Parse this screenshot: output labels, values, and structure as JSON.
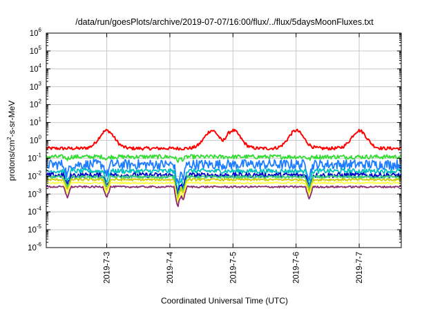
{
  "chart_data": {
    "type": "line",
    "title": "/data/run/goesPlots/archive/2019-07-07/16:00/flux/../flux/5daysMoonFluxes.txt",
    "xlabel": "Coordinated Universal Time (UTC)",
    "ylabel": "protons/cm2-s-sr-MeV",
    "ylabel_parts": {
      "pre": "protons/cm",
      "sup": "2",
      "post": "-s-sr-MeV"
    },
    "yscale": "log",
    "ylim_exp": [
      -6,
      6
    ],
    "y_tick_labels": [
      {
        "base": "10",
        "exp": "6"
      },
      {
        "base": "10",
        "exp": "5"
      },
      {
        "base": "10",
        "exp": "4"
      },
      {
        "base": "10",
        "exp": "3"
      },
      {
        "base": "10",
        "exp": "2"
      },
      {
        "base": "10",
        "exp": "1"
      },
      {
        "base": "10",
        "exp": "0"
      },
      {
        "base": "10",
        "exp": "-1"
      },
      {
        "base": "10",
        "exp": "-2"
      },
      {
        "base": "10",
        "exp": "-3"
      },
      {
        "base": "10",
        "exp": "-4"
      },
      {
        "base": "10",
        "exp": "-5"
      },
      {
        "base": "10",
        "exp": "-6"
      }
    ],
    "x_range_days": [
      "2019-7-2 01:00",
      "2019-7-7 16:00"
    ],
    "x_tick_labels": [
      "2019-7-3",
      "2019-7-4",
      "2019-7-5",
      "2019-7-6",
      "2019-7-7"
    ],
    "grid": true,
    "legend": "none",
    "series": [
      {
        "color": "#ff0000",
        "kind": "modulated",
        "base": 0.0,
        "amp": 0.45,
        "noise": 0.09,
        "peaks": [
          "2019-7-3",
          "2019-7-4 16:00",
          "2019-7-5",
          "2019-7-6",
          "2019-7-7 00:00"
        ]
      },
      {
        "color": "#33dd33",
        "kind": "flat",
        "level": -0.92,
        "noise": 0.12
      },
      {
        "color": "#1f7dff",
        "kind": "flat",
        "level": -1.35,
        "noise": 0.28
      },
      {
        "color": "#00bfbf",
        "kind": "flat",
        "level": -1.72,
        "noise": 0.13
      },
      {
        "color": "#0000cc",
        "kind": "flat",
        "level": -1.95,
        "noise": 0.14
      },
      {
        "color": "#39d07a",
        "kind": "flat",
        "level": -2.05,
        "noise": 0.08
      },
      {
        "color": "#cccc00",
        "kind": "flat",
        "level": -2.2,
        "noise": 0.06
      },
      {
        "color": "#ffff44",
        "kind": "flat",
        "level": -2.38,
        "noise": 0.05
      },
      {
        "color": "#8b2a6e",
        "kind": "flat",
        "level": -2.6,
        "noise": 0.05
      }
    ],
    "dips": [
      {
        "x": "2019-7-2 09:00",
        "depth": 0.6
      },
      {
        "x": "2019-7-3 00:00",
        "depth": 0.6
      },
      {
        "x": "2019-7-4 03:00",
        "depth": 1.2
      },
      {
        "x": "2019-7-4 05:00",
        "depth": 0.8
      },
      {
        "x": "2019-7-6 05:00",
        "depth": 0.7
      }
    ]
  }
}
